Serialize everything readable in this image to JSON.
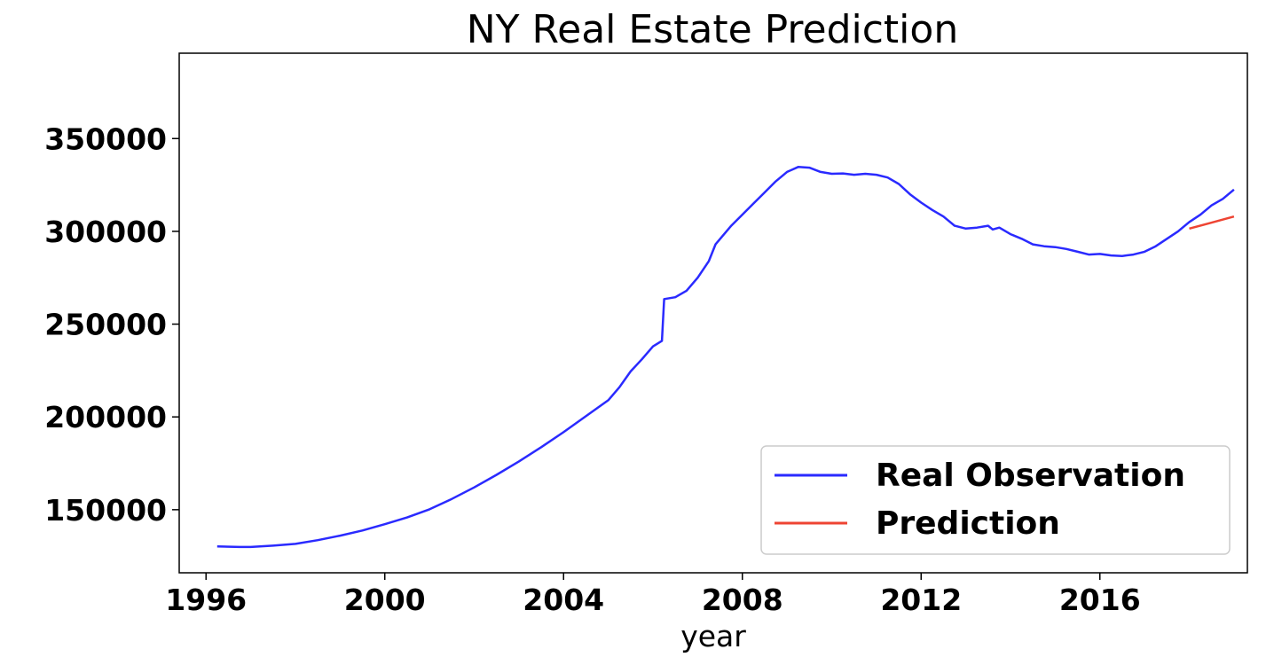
{
  "chart_data": {
    "type": "line",
    "title": "NY Real Estate Prediction",
    "xlabel": "year",
    "ylabel": "",
    "xlim": [
      1995.4,
      2019.3
    ],
    "ylim": [
      116000,
      396000
    ],
    "x_ticks": [
      1996,
      2000,
      2004,
      2008,
      2012,
      2016
    ],
    "x_tick_labels": [
      "1996",
      "2000",
      "2004",
      "2008",
      "2012",
      "2016"
    ],
    "y_ticks": [
      150000,
      200000,
      250000,
      300000,
      350000
    ],
    "y_tick_labels": [
      "150000",
      "200000",
      "250000",
      "300000",
      "350000"
    ],
    "grid": false,
    "legend_position": "lower-right",
    "series": [
      {
        "name": "Real Observation",
        "color": "#2a2aff",
        "points": [
          [
            1996.25,
            130200
          ],
          [
            1996.75,
            129900
          ],
          [
            1997.0,
            129900
          ],
          [
            1997.5,
            130600
          ],
          [
            1998.0,
            131600
          ],
          [
            1998.5,
            133600
          ],
          [
            1999.0,
            136000
          ],
          [
            1999.5,
            138800
          ],
          [
            2000.0,
            142200
          ],
          [
            2000.5,
            145800
          ],
          [
            2001.0,
            150200
          ],
          [
            2001.5,
            155800
          ],
          [
            2002.0,
            162000
          ],
          [
            2002.5,
            168800
          ],
          [
            2003.0,
            176000
          ],
          [
            2003.5,
            183700
          ],
          [
            2004.0,
            191800
          ],
          [
            2004.5,
            200400
          ],
          [
            2005.0,
            209000
          ],
          [
            2005.25,
            216000
          ],
          [
            2005.5,
            224500
          ],
          [
            2005.75,
            231000
          ],
          [
            2006.0,
            238000
          ],
          [
            2006.2,
            241000
          ],
          [
            2006.25,
            263500
          ],
          [
            2006.5,
            264500
          ],
          [
            2006.75,
            268000
          ],
          [
            2007.0,
            275000
          ],
          [
            2007.25,
            284000
          ],
          [
            2007.4,
            293000
          ],
          [
            2007.75,
            303000
          ],
          [
            2008.0,
            309000
          ],
          [
            2008.25,
            315000
          ],
          [
            2008.5,
            321000
          ],
          [
            2008.75,
            327000
          ],
          [
            2009.0,
            332000
          ],
          [
            2009.25,
            334700
          ],
          [
            2009.5,
            334300
          ],
          [
            2009.75,
            332000
          ],
          [
            2010.0,
            331000
          ],
          [
            2010.25,
            331200
          ],
          [
            2010.5,
            330500
          ],
          [
            2010.75,
            331000
          ],
          [
            2011.0,
            330500
          ],
          [
            2011.25,
            329000
          ],
          [
            2011.5,
            325500
          ],
          [
            2011.75,
            320000
          ],
          [
            2012.0,
            315500
          ],
          [
            2012.25,
            311500
          ],
          [
            2012.5,
            308000
          ],
          [
            2012.75,
            303000
          ],
          [
            2013.0,
            301500
          ],
          [
            2013.25,
            302000
          ],
          [
            2013.5,
            303000
          ],
          [
            2013.6,
            301000
          ],
          [
            2013.75,
            302000
          ],
          [
            2014.0,
            298500
          ],
          [
            2014.25,
            296000
          ],
          [
            2014.5,
            293000
          ],
          [
            2014.75,
            292000
          ],
          [
            2015.0,
            291500
          ],
          [
            2015.25,
            290500
          ],
          [
            2015.5,
            289000
          ],
          [
            2015.75,
            287500
          ],
          [
            2016.0,
            287800
          ],
          [
            2016.25,
            287000
          ],
          [
            2016.5,
            286700
          ],
          [
            2016.75,
            287500
          ],
          [
            2017.0,
            289000
          ],
          [
            2017.25,
            292000
          ],
          [
            2017.5,
            296000
          ],
          [
            2017.75,
            300000
          ],
          [
            2018.0,
            305000
          ],
          [
            2018.25,
            309000
          ],
          [
            2018.5,
            314000
          ],
          [
            2018.75,
            317500
          ],
          [
            2019.0,
            322500
          ]
        ]
      },
      {
        "name": "Prediction",
        "color": "#ee4433",
        "points": [
          [
            2018.0,
            301500
          ],
          [
            2018.5,
            304700
          ],
          [
            2019.0,
            308000
          ]
        ]
      }
    ]
  }
}
